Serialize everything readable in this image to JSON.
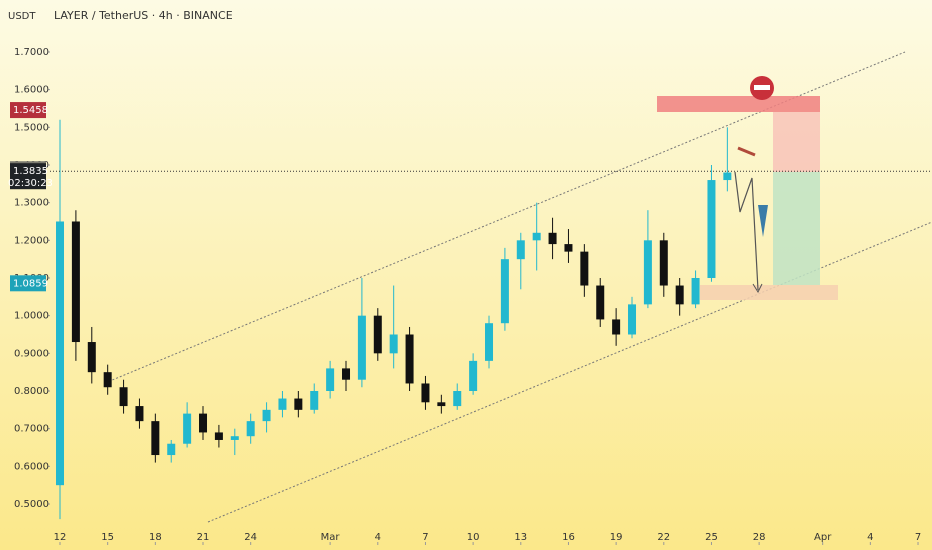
{
  "chart_data": {
    "type": "candlestick",
    "title": "LAYER / TetherUS · 4h · BINANCE",
    "y_axis_label": "USDT",
    "up_color": "#22b8cf",
    "down_color": "#111111",
    "candles": [
      [
        12,
        0.55,
        1.52,
        0.46,
        1.25
      ],
      [
        13,
        1.25,
        1.28,
        0.88,
        0.93
      ],
      [
        14,
        0.93,
        0.97,
        0.82,
        0.85
      ],
      [
        15,
        0.85,
        0.87,
        0.79,
        0.81
      ],
      [
        16,
        0.81,
        0.83,
        0.74,
        0.76
      ],
      [
        17,
        0.76,
        0.78,
        0.7,
        0.72
      ],
      [
        18,
        0.72,
        0.74,
        0.61,
        0.63
      ],
      [
        19,
        0.63,
        0.67,
        0.61,
        0.66
      ],
      [
        20,
        0.66,
        0.77,
        0.65,
        0.74
      ],
      [
        21,
        0.74,
        0.76,
        0.67,
        0.69
      ],
      [
        22,
        0.69,
        0.71,
        0.65,
        0.67
      ],
      [
        23,
        0.67,
        0.7,
        0.63,
        0.68
      ],
      [
        24,
        0.68,
        0.74,
        0.66,
        0.72
      ],
      [
        25,
        0.72,
        0.77,
        0.69,
        0.75
      ],
      [
        26,
        0.75,
        0.8,
        0.73,
        0.78
      ],
      [
        27,
        0.78,
        0.8,
        0.73,
        0.75
      ],
      [
        28,
        0.75,
        0.82,
        0.74,
        0.8
      ],
      [
        29,
        0.8,
        0.88,
        0.78,
        0.86
      ],
      [
        30,
        0.86,
        0.88,
        0.8,
        0.83
      ],
      [
        31,
        0.83,
        1.1,
        0.81,
        1.0
      ],
      [
        32,
        1.0,
        1.02,
        0.88,
        0.9
      ],
      [
        33,
        0.9,
        1.08,
        0.86,
        0.95
      ],
      [
        34,
        0.95,
        0.97,
        0.8,
        0.82
      ],
      [
        35,
        0.82,
        0.84,
        0.75,
        0.77
      ],
      [
        36,
        0.77,
        0.79,
        0.74,
        0.76
      ],
      [
        37,
        0.76,
        0.82,
        0.75,
        0.8
      ],
      [
        38,
        0.8,
        0.9,
        0.79,
        0.88
      ],
      [
        39,
        0.88,
        1.0,
        0.86,
        0.98
      ],
      [
        40,
        0.98,
        1.18,
        0.96,
        1.15
      ],
      [
        41,
        1.15,
        1.22,
        1.07,
        1.2
      ],
      [
        42,
        1.2,
        1.3,
        1.12,
        1.22
      ],
      [
        43,
        1.22,
        1.26,
        1.15,
        1.19
      ],
      [
        44,
        1.19,
        1.23,
        1.14,
        1.17
      ],
      [
        45,
        1.17,
        1.19,
        1.05,
        1.08
      ],
      [
        46,
        1.08,
        1.1,
        0.97,
        0.99
      ],
      [
        47,
        0.99,
        1.02,
        0.92,
        0.95
      ],
      [
        48,
        0.95,
        1.05,
        0.94,
        1.03
      ],
      [
        49,
        1.03,
        1.28,
        1.02,
        1.2
      ],
      [
        50,
        1.2,
        1.22,
        1.05,
        1.08
      ],
      [
        51,
        1.08,
        1.1,
        1.0,
        1.03
      ],
      [
        52,
        1.03,
        1.12,
        1.02,
        1.1
      ],
      [
        53,
        1.1,
        1.4,
        1.09,
        1.36
      ],
      [
        54,
        1.36,
        1.5,
        1.33,
        1.38
      ]
    ],
    "xlim": [
      11.37,
      66.88
    ],
    "xticks": [
      {
        "value": 12,
        "label": "12"
      },
      {
        "value": 15,
        "label": "15"
      },
      {
        "value": 18,
        "label": "18"
      },
      {
        "value": 21,
        "label": "21"
      },
      {
        "value": 24,
        "label": "24"
      },
      {
        "value": 29,
        "label": "Mar"
      },
      {
        "value": 32,
        "label": "4"
      },
      {
        "value": 35,
        "label": "7"
      },
      {
        "value": 38,
        "label": "10"
      },
      {
        "value": 41,
        "label": "13"
      },
      {
        "value": 44,
        "label": "16"
      },
      {
        "value": 47,
        "label": "19"
      },
      {
        "value": 50,
        "label": "22"
      },
      {
        "value": 53,
        "label": "25"
      },
      {
        "value": 56,
        "label": "28"
      },
      {
        "value": 60,
        "label": "Apr"
      },
      {
        "value": 63,
        "label": "4"
      },
      {
        "value": 66,
        "label": "7"
      }
    ],
    "ylim": [
      0.431,
      1.838
    ],
    "yticks": [
      {
        "value": 0.5,
        "label": "0.5000"
      },
      {
        "value": 0.6,
        "label": "0.6000"
      },
      {
        "value": 0.7,
        "label": "0.7000"
      },
      {
        "value": 0.8,
        "label": "0.8000"
      },
      {
        "value": 0.9,
        "label": "0.9000"
      },
      {
        "value": 1.0,
        "label": "1.0000"
      },
      {
        "value": 1.1,
        "label": "1.1000"
      },
      {
        "value": 1.2,
        "label": "1.2000"
      },
      {
        "value": 1.3,
        "label": "1.3000"
      },
      {
        "value": 1.4,
        "label": "1.4000"
      },
      {
        "value": 1.5,
        "label": "1.5000"
      },
      {
        "value": 1.6,
        "label": "1.6000"
      },
      {
        "value": 1.7,
        "label": "1.7000"
      }
    ],
    "price_tags": [
      {
        "value": 1.5458,
        "color": "#b5303c"
      },
      {
        "value": 1.3887,
        "color": "#7b7b70"
      },
      {
        "value": 1.3835,
        "color": "#1f2326"
      },
      {
        "value": 1.0859,
        "color": "#1ea3b8"
      }
    ],
    "countdown": "02:30:23"
  }
}
